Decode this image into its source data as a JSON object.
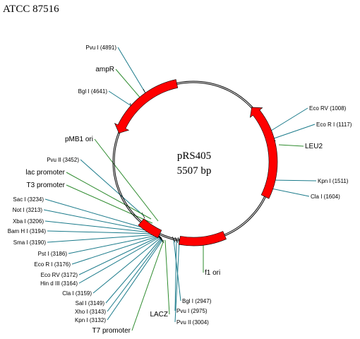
{
  "title": "ATCC 87516",
  "plasmid": {
    "name": "pRS405",
    "size": "5507 bp"
  },
  "labels": [
    {
      "text": "Pvu  I (4891)",
      "kind": "site"
    },
    {
      "text": "ampR",
      "kind": "feature"
    },
    {
      "text": "Bgl I (4641)",
      "kind": "site"
    },
    {
      "text": "pMB1 ori",
      "kind": "feature"
    },
    {
      "text": "Pvu  II (3452)",
      "kind": "site"
    },
    {
      "text": "lac promoter",
      "kind": "feature"
    },
    {
      "text": "T3 promoter",
      "kind": "feature"
    },
    {
      "text": "Sac  I (3234)",
      "kind": "site"
    },
    {
      "text": "Not  I (3213)",
      "kind": "site"
    },
    {
      "text": "Xba  I (3206)",
      "kind": "site"
    },
    {
      "text": "Bam  H I (3194)",
      "kind": "site"
    },
    {
      "text": "Sma  I (3190)",
      "kind": "site"
    },
    {
      "text": "Pst  I (3186)",
      "kind": "site"
    },
    {
      "text": "Eco  R I (3176)",
      "kind": "site"
    },
    {
      "text": "Eco  RV (3172)",
      "kind": "site"
    },
    {
      "text": "Hin  d III (3164)",
      "kind": "site"
    },
    {
      "text": "Cla  I (3159)",
      "kind": "site"
    },
    {
      "text": "Sal  I (3149)",
      "kind": "site"
    },
    {
      "text": "Xho  I (3143)",
      "kind": "site"
    },
    {
      "text": "Kpn  I (3132)",
      "kind": "site"
    },
    {
      "text": "T7 promoter",
      "kind": "feature"
    },
    {
      "text": "LACZ",
      "kind": "feature"
    },
    {
      "text": "Bgl  I (2947)",
      "kind": "site"
    },
    {
      "text": "Pvu  I (2975)",
      "kind": "site"
    },
    {
      "text": "Pvu  II (3004)",
      "kind": "site"
    },
    {
      "text": "f1 ori",
      "kind": "feature"
    },
    {
      "text": "Eco  RV (1008)",
      "kind": "site"
    },
    {
      "text": "Eco R I (1117)",
      "kind": "site"
    },
    {
      "text": "LEU2",
      "kind": "feature"
    },
    {
      "text": "Kpn  I (1511)",
      "kind": "site"
    },
    {
      "text": "Cla  I (1604)",
      "kind": "site"
    }
  ]
}
